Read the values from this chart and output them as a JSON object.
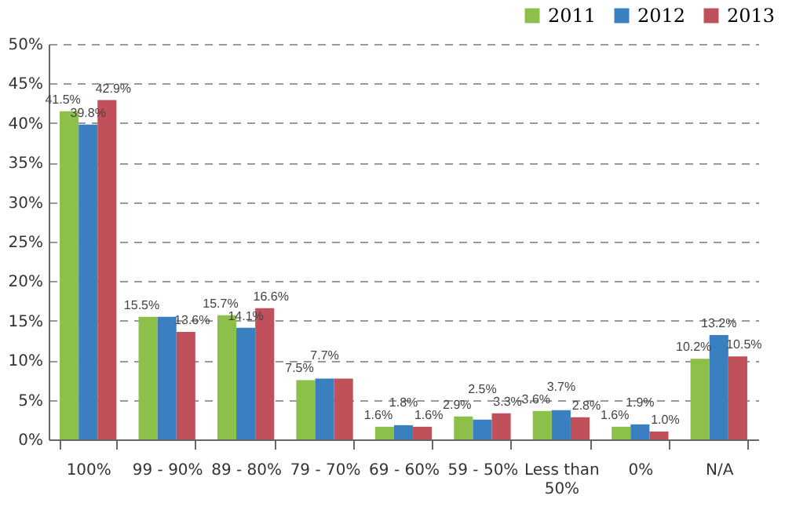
{
  "chart_data": {
    "type": "bar",
    "categories": [
      "100%",
      "99 - 90%",
      "89 - 80%",
      "79 - 70%",
      "69 - 60%",
      "59 - 50%",
      "Less than 50%",
      "0%",
      "N/A"
    ],
    "series": [
      {
        "name": "2011",
        "color": "#8dc04b",
        "values": [
          41.5,
          15.5,
          15.7,
          7.5,
          1.6,
          2.9,
          3.6,
          1.6,
          10.2
        ],
        "value_labels": [
          "41.5%",
          "15.5%",
          "15.7%",
          "7.5%",
          "1.6%",
          "2.9%",
          "3.6%",
          "1.6%",
          "10.2%"
        ]
      },
      {
        "name": "2012",
        "color": "#3a80c0",
        "values": [
          39.8,
          15.5,
          14.1,
          7.7,
          1.8,
          2.5,
          3.7,
          1.9,
          13.2
        ],
        "value_labels": [
          "39.8%",
          null,
          "14.1%",
          "7.7%",
          "1.8%",
          "2.5%",
          "3.7%",
          "1.9%",
          "13.2%"
        ]
      },
      {
        "name": "2013",
        "color": "#c0505a",
        "values": [
          42.9,
          13.6,
          16.6,
          7.7,
          1.6,
          3.3,
          2.8,
          1.0,
          10.5
        ],
        "value_labels": [
          "42.9%",
          "13.6%",
          "16.6%",
          null,
          "1.6%",
          "3.3%",
          "2.8%",
          "1.0%",
          "10.5%"
        ]
      }
    ],
    "ylim": [
      0,
      50
    ],
    "yticks": [
      {
        "value": 0,
        "label": "0%"
      },
      {
        "value": 5,
        "label": "5%"
      },
      {
        "value": 10,
        "label": "10%"
      },
      {
        "value": 15,
        "label": "15%"
      },
      {
        "value": 20,
        "label": "20%"
      },
      {
        "value": 25,
        "label": "25%"
      },
      {
        "value": 30,
        "label": "30%"
      },
      {
        "value": 35,
        "label": "35%"
      },
      {
        "value": 40,
        "label": "40%"
      },
      {
        "value": 45,
        "label": "45%"
      },
      {
        "value": 50,
        "label": "50%"
      }
    ],
    "grid": "y",
    "legend": "top right"
  }
}
